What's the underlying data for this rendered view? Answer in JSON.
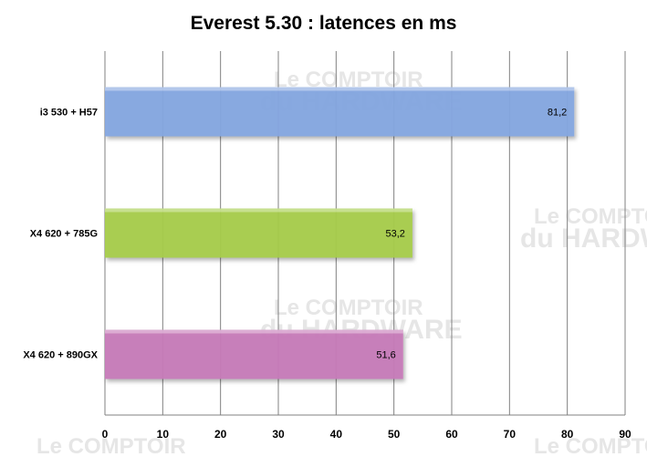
{
  "chart_data": {
    "type": "bar",
    "orientation": "horizontal",
    "title": "Everest 5.30 : latences en ms",
    "categories": [
      "i3 530 + H57",
      "X4 620 + 785G",
      "X4 620 + 890GX"
    ],
    "values": [
      81.2,
      53.2,
      51.6
    ],
    "data_labels": [
      "81,2",
      "53,2",
      "51,6"
    ],
    "colors": [
      "#84a7e0",
      "#a6cc4c",
      "#c77bb8"
    ],
    "xlim": [
      0,
      90
    ],
    "xticks": [
      "0",
      "10",
      "20",
      "30",
      "40",
      "50",
      "60",
      "70",
      "80",
      "90"
    ],
    "xlabel": "",
    "ylabel": "",
    "grid": "vertical",
    "legend": "none",
    "watermark": "Le COMPTOIR du HARDWARE"
  }
}
